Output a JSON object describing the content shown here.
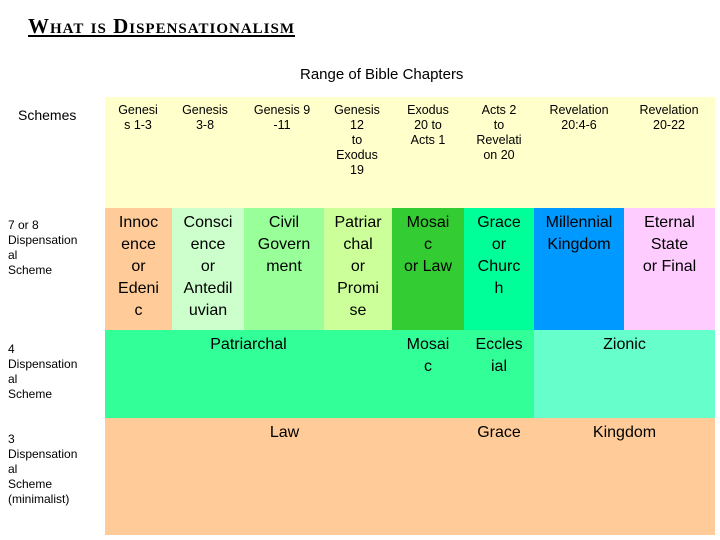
{
  "title": "What is Dispensationalism",
  "range_label": "Range of Bible Chapters",
  "schemes_label": "Schemes",
  "rows": [
    {
      "label": "7 or 8\nDispensation\nal\nScheme"
    },
    {
      "label": "4\nDispensation\nal\nScheme"
    },
    {
      "label": "3\nDispensation\nal\nScheme\n(minimalist)"
    }
  ],
  "columns": [
    "Genesi\ns 1-3",
    "Genesis\n3-8",
    "Genesis 9\n-11",
    "Genesis\n12\nto\nExodus\n19",
    "Exodus\n20 to\nActs 1",
    "Acts 2\nto\nRevelati\non 20",
    "Revelation\n20:4-6",
    "Revelation\n20-22"
  ],
  "seven": [
    "Innoc\nence\nor\nEdeni\nc",
    "Consci\nence\nor\nAntedil\nuvian",
    "Civil\nGovern\nment",
    "Patriar\nchal\nor\nPromi\nse",
    "Mosai\nc\nor Law",
    "Grace\nor\nChurc\nh",
    "Millennial\nKingdom",
    "Eternal\nState\nor Final"
  ],
  "four": [
    "Patriarchal",
    "Mosai\nc",
    "Eccles\nial",
    "Zionic"
  ],
  "three": [
    "Law",
    "Grace",
    "Kingdom"
  ],
  "colors": {
    "header": "#ffffcc",
    "innocence": "#ffcc99",
    "conscience": "#ccffcc",
    "civil": "#99ff99",
    "patriarchal": "#ccff99",
    "mosaic": "#33cc33",
    "grace": "#00ff99",
    "millennial": "#0099ff",
    "eternal": "#ffccff",
    "four_a": "#33ff99",
    "four_b": "#66ffcc",
    "three_a": "#ffcc99",
    "three_b": "#ffcc99"
  }
}
